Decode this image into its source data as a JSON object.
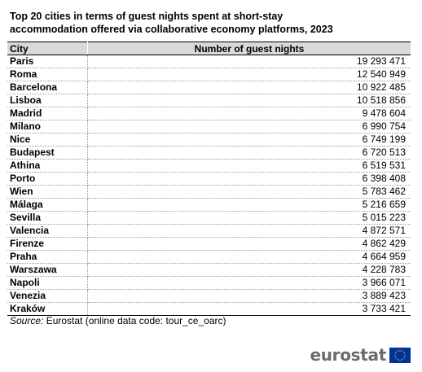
{
  "title": {
    "line1": "Top 20 cities in terms of guest nights spent at short-stay",
    "line2": "accommodation offered via collaborative economy platforms, 2023"
  },
  "table": {
    "headers": {
      "city": "City",
      "nights": "Number of guest nights"
    },
    "rows": [
      {
        "city": "Paris",
        "nights": "19 293 471"
      },
      {
        "city": "Roma",
        "nights": "12 540 949"
      },
      {
        "city": "Barcelona",
        "nights": "10 922 485"
      },
      {
        "city": "Lisboa",
        "nights": "10 518 856"
      },
      {
        "city": "Madrid",
        "nights": "9 478 604"
      },
      {
        "city": "Milano",
        "nights": "6 990 754"
      },
      {
        "city": "Nice",
        "nights": "6 749 199"
      },
      {
        "city": "Budapest",
        "nights": "6 720 513"
      },
      {
        "city": "Athina",
        "nights": "6 519 531"
      },
      {
        "city": "Porto",
        "nights": "6 398 408"
      },
      {
        "city": "Wien",
        "nights": "5 783 462"
      },
      {
        "city": "Málaga",
        "nights": "5 216 659"
      },
      {
        "city": "Sevilla",
        "nights": "5 015 223"
      },
      {
        "city": "Valencia",
        "nights": "4 872 571"
      },
      {
        "city": "Firenze",
        "nights": "4 862 429"
      },
      {
        "city": "Praha",
        "nights": "4 664 959"
      },
      {
        "city": "Warszawa",
        "nights": "4 228 783"
      },
      {
        "city": "Napoli",
        "nights": "3 966 071"
      },
      {
        "city": "Venezia",
        "nights": "3 889 423"
      },
      {
        "city": "Kraków",
        "nights": "3 733 421"
      }
    ]
  },
  "source": {
    "label": "Source:",
    "text": " Eurostat (online data code: tour_ce_oarc)"
  },
  "logo": {
    "text": "eurostat",
    "text_color": "#6b6b6b",
    "flag_icon": "eu-flag-icon",
    "flag_color": "#003399",
    "star_color": "#ffcc00"
  }
}
